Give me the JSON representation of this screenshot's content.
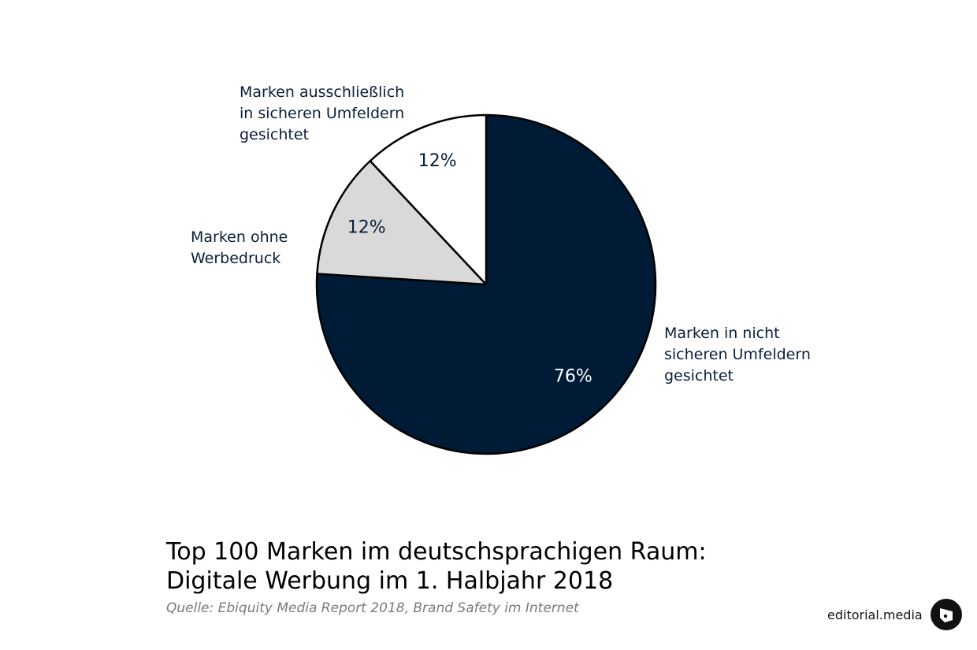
{
  "chart_data": {
    "type": "pie",
    "title_lines": [
      "Top 100 Marken im deutschsprachigen Raum:",
      "Digitale Werbung im 1. Halbjahr 2018"
    ],
    "source": "Quelle: Ebiquity Media Report 2018, Brand Safety im Internet",
    "slices": [
      {
        "label_lines": [
          "Marken in nicht",
          "sicheren Umfeldern",
          "gesichtet"
        ],
        "value": 76,
        "value_label": "76%",
        "color": "#001b35",
        "text_color": "#ffffff"
      },
      {
        "label_lines": [
          "Marken ohne",
          "Werbedruck"
        ],
        "value": 12,
        "value_label": "12%",
        "color": "#d9d9d9",
        "text_color": "#0b1e3a"
      },
      {
        "label_lines": [
          "Marken ausschließlich",
          "in sicheren Umfeldern",
          "gesichtet"
        ],
        "value": 12,
        "value_label": "12%",
        "color": "#ffffff",
        "text_color": "#0b1e3a"
      }
    ]
  },
  "brand": {
    "name": "editorial.media",
    "logo_icon": "editorial-media-logo-icon"
  }
}
